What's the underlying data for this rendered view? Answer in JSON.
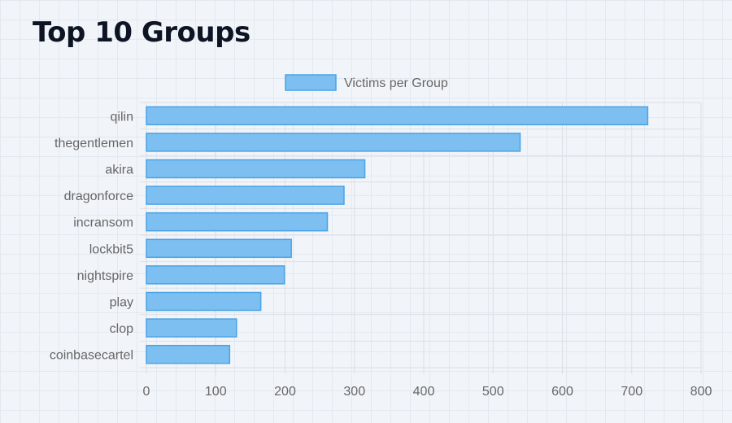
{
  "page": {
    "title": "Top 10 Groups"
  },
  "chart_data": {
    "type": "bar",
    "orientation": "horizontal",
    "categories": [
      "qilin",
      "thegentlemen",
      "akira",
      "dragonforce",
      "incransom",
      "lockbit5",
      "nightspire",
      "play",
      "clop",
      "coinbasecartel"
    ],
    "series": [
      {
        "name": "Victims per Group",
        "values": [
          723,
          539,
          315,
          285,
          261,
          209,
          199,
          165,
          130,
          120
        ]
      }
    ],
    "xlim": [
      0,
      800
    ],
    "xticks": [
      0,
      100,
      200,
      300,
      400,
      500,
      600,
      700,
      800
    ],
    "grid": true,
    "legend": "top-center",
    "colors": {
      "bar_fill": "#7cbff0",
      "bar_stroke": "#4aa3e6",
      "grid": "#dcdfe4"
    }
  }
}
